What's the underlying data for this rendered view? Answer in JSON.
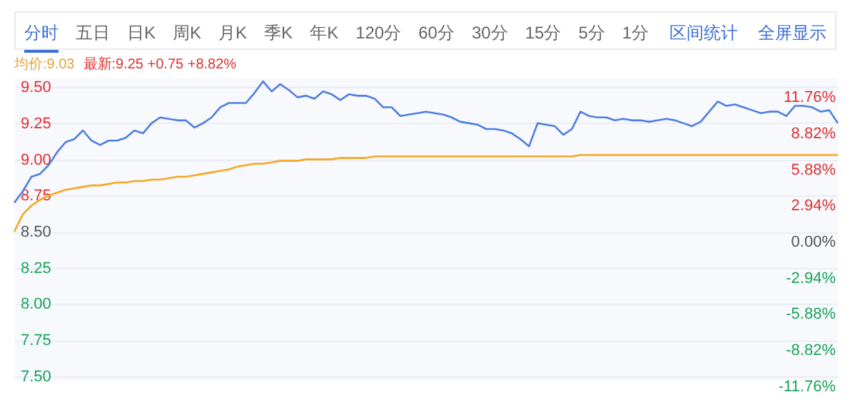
{
  "chart_data": {
    "type": "line",
    "annotations": [
      "分时",
      "五日",
      "日K",
      "周K",
      "月K",
      "季K",
      "年K",
      "120分",
      "60分",
      "30分",
      "15分",
      "5分",
      "1分",
      "区间统计",
      "全屏显示",
      "均价:9.03",
      "最新:9.25 +0.75 +8.82%"
    ],
    "categories": [
      null,
      null,
      null,
      null,
      null,
      null,
      null,
      null,
      null,
      null,
      null,
      null,
      null,
      null,
      null,
      null,
      null,
      null,
      null,
      null,
      null,
      null,
      null,
      null,
      null,
      null,
      null,
      null,
      null,
      null,
      null,
      null,
      null,
      null,
      null,
      null,
      null,
      null,
      null,
      null,
      null,
      null,
      null,
      null,
      null,
      null,
      null,
      null,
      null,
      null,
      null,
      null,
      null,
      null,
      null,
      null,
      null,
      null,
      null,
      null,
      null,
      null,
      null,
      null,
      null,
      null,
      null,
      null,
      null,
      null,
      null,
      null,
      null,
      null,
      null,
      null,
      null,
      null,
      null,
      null,
      null,
      null,
      null,
      null,
      null,
      null,
      null,
      null,
      null,
      null,
      null,
      null,
      null,
      null,
      null,
      null,
      null
    ],
    "series": [
      {
        "color": "#4f7de0",
        "values": [
          8.7,
          8.78,
          8.88,
          8.9,
          8.96,
          9.05,
          9.12,
          9.14,
          9.2,
          9.13,
          9.1,
          9.13,
          9.13,
          9.15,
          9.2,
          9.18,
          9.25,
          9.29,
          9.28,
          9.27,
          9.27,
          9.22,
          9.25,
          9.29,
          9.36,
          9.39,
          9.39,
          9.39,
          9.46,
          9.54,
          9.47,
          9.52,
          9.48,
          9.43,
          9.44,
          9.42,
          9.47,
          9.45,
          9.41,
          9.45,
          9.44,
          9.44,
          9.42,
          9.36,
          9.36,
          9.3,
          9.31,
          9.32,
          9.33,
          9.32,
          9.31,
          9.29,
          9.26,
          9.25,
          9.24,
          9.21,
          9.21,
          9.2,
          9.18,
          9.14,
          9.09,
          9.25,
          9.24,
          9.23,
          9.17,
          9.21,
          9.33,
          9.3,
          9.29,
          9.29,
          9.27,
          9.28,
          9.27,
          9.27,
          9.26,
          9.27,
          9.28,
          9.27,
          9.25,
          9.23,
          9.26,
          9.33,
          9.4,
          9.37,
          9.38,
          9.36,
          9.34,
          9.32,
          9.33,
          9.33,
          9.3,
          9.37,
          9.37,
          9.36,
          9.33,
          9.34,
          9.25
        ]
      },
      {
        "color": "#f5a623",
        "values": [
          8.5,
          8.62,
          8.68,
          8.72,
          8.75,
          8.77,
          8.79,
          8.8,
          8.81,
          8.82,
          8.82,
          8.83,
          8.84,
          8.84,
          8.85,
          8.85,
          8.86,
          8.86,
          8.87,
          8.88,
          8.88,
          8.89,
          8.9,
          8.91,
          8.92,
          8.93,
          8.95,
          8.96,
          8.97,
          8.97,
          8.98,
          8.99,
          8.99,
          8.99,
          9.0,
          9.0,
          9.0,
          9.0,
          9.01,
          9.01,
          9.01,
          9.01,
          9.02,
          9.02,
          9.02,
          9.02,
          9.02,
          9.02,
          9.02,
          9.02,
          9.02,
          9.02,
          9.02,
          9.02,
          9.02,
          9.02,
          9.02,
          9.02,
          9.02,
          9.02,
          9.02,
          9.02,
          9.02,
          9.02,
          9.02,
          9.02,
          9.03,
          9.03,
          9.03,
          9.03,
          9.03,
          9.03,
          9.03,
          9.03,
          9.03,
          9.03,
          9.03,
          9.03,
          9.03,
          9.03,
          9.03,
          9.03,
          9.03,
          9.03,
          9.03,
          9.03,
          9.03,
          9.03,
          9.03,
          9.03,
          9.03,
          9.03,
          9.03,
          9.03,
          9.03,
          9.03,
          9.03
        ]
      }
    ],
    "ylim": [
      7.47,
      9.56
    ],
    "yticks": [
      {
        "value": 7.5,
        "label": "7.50"
      },
      {
        "value": 7.75,
        "label": "7.75"
      },
      {
        "value": 8.0,
        "label": "8.00"
      },
      {
        "value": 8.25,
        "label": "8.25"
      },
      {
        "value": 8.5,
        "label": "8.50"
      },
      {
        "value": 8.75,
        "label": "8.75"
      },
      {
        "value": 9.0,
        "label": "9.00"
      },
      {
        "value": 9.25,
        "label": "9.25"
      },
      {
        "value": 9.5,
        "label": "9.50"
      }
    ],
    "y2lim": [
      -12.12,
      12.47
    ],
    "y2ticks": [
      {
        "value": -11.76,
        "label": "-11.76%"
      },
      {
        "value": -8.82,
        "label": "-8.82%"
      },
      {
        "value": -5.88,
        "label": "-5.88%"
      },
      {
        "value": -2.94,
        "label": "-2.94%"
      },
      {
        "value": 0,
        "label": "0.00%"
      },
      {
        "value": 2.94,
        "label": "2.94%"
      },
      {
        "value": 5.88,
        "label": "5.88%"
      },
      {
        "value": 8.82,
        "label": "8.82%"
      },
      {
        "value": 11.76,
        "label": "11.76%"
      }
    ],
    "grid": "y",
    "tick_labels": "y"
  }
}
